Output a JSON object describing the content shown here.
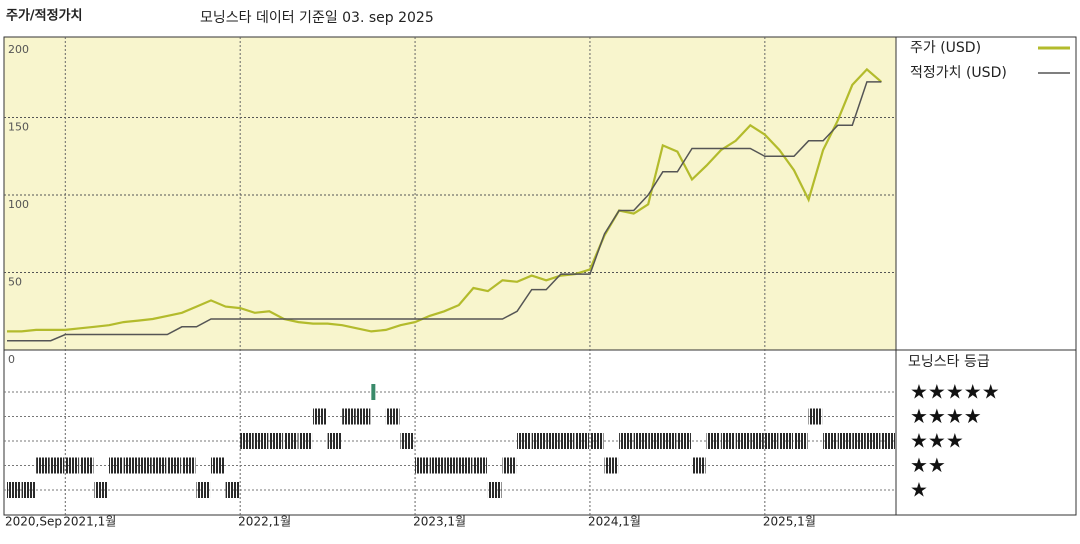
{
  "chart_data": {
    "type": "line",
    "title": "주가/적정가치",
    "subtitle": "모닝스타 데이터 기준일 03. sep 2025",
    "x": [
      "2020-09",
      "2020-10",
      "2020-11",
      "2020-12",
      "2021-01",
      "2021-02",
      "2021-03",
      "2021-04",
      "2021-05",
      "2021-06",
      "2021-07",
      "2021-08",
      "2021-09",
      "2021-10",
      "2021-11",
      "2021-12",
      "2022-01",
      "2022-02",
      "2022-03",
      "2022-04",
      "2022-05",
      "2022-06",
      "2022-07",
      "2022-08",
      "2022-09",
      "2022-10",
      "2022-11",
      "2022-12",
      "2023-01",
      "2023-02",
      "2023-03",
      "2023-04",
      "2023-05",
      "2023-06",
      "2023-07",
      "2023-08",
      "2023-09",
      "2023-10",
      "2023-11",
      "2023-12",
      "2024-01",
      "2024-02",
      "2024-03",
      "2024-04",
      "2024-05",
      "2024-06",
      "2024-07",
      "2024-08",
      "2024-09",
      "2024-10",
      "2024-11",
      "2024-12",
      "2025-01",
      "2025-02",
      "2025-03",
      "2025-04",
      "2025-05",
      "2025-06",
      "2025-07",
      "2025-08",
      "2025-09"
    ],
    "series": [
      {
        "name": "주가 (USD)",
        "color": "#b3bb2c",
        "values": [
          12,
          12,
          13,
          13,
          13,
          14,
          15,
          16,
          18,
          19,
          20,
          22,
          24,
          28,
          32,
          28,
          27,
          24,
          25,
          20,
          18,
          17,
          17,
          16,
          14,
          12,
          13,
          16,
          18,
          22,
          25,
          29,
          40,
          38,
          45,
          44,
          48,
          45,
          48,
          49,
          52,
          74,
          90,
          88,
          94,
          132,
          128,
          110,
          119,
          129,
          135,
          145,
          139,
          129,
          116,
          97,
          129,
          148,
          171,
          181,
          173
        ]
      },
      {
        "name": "적정가치 (USD)",
        "color": "#555555",
        "values": [
          6,
          6,
          6,
          6,
          10,
          10,
          10,
          10,
          10,
          10,
          10,
          10,
          15,
          15,
          20,
          20,
          20,
          20,
          20,
          20,
          20,
          20,
          20,
          20,
          20,
          20,
          20,
          20,
          20,
          20,
          20,
          20,
          20,
          20,
          20,
          25,
          39,
          39,
          49,
          49,
          49,
          75,
          90,
          90,
          100,
          115,
          115,
          130,
          130,
          130,
          130,
          130,
          125,
          125,
          125,
          135,
          135,
          145,
          145,
          173,
          173
        ]
      }
    ],
    "xlim": [
      "2020-09",
      "2025-10"
    ],
    "xticks": [
      {
        "value": "2020-09",
        "label": "2020,Sep"
      },
      {
        "value": "2021-01",
        "label": "2021,1월"
      },
      {
        "value": "2022-01",
        "label": "2022,1월"
      },
      {
        "value": "2023-01",
        "label": "2023,1월"
      },
      {
        "value": "2024-01",
        "label": "2024,1월"
      },
      {
        "value": "2025-01",
        "label": "2025,1월"
      }
    ],
    "ylim": [
      0,
      200
    ],
    "yticks": [
      0,
      50,
      100,
      150,
      200
    ],
    "grid": true,
    "background": "#f8f5cd",
    "rating": {
      "title": "모닝스타 등급",
      "labels": [
        "★",
        "★★",
        "★★★",
        "★★★★",
        "★★★★★"
      ],
      "color": "#2a2a2a",
      "top_color": "#3a8a6a",
      "values": [
        1,
        1,
        2,
        2,
        2,
        2,
        1,
        2,
        2,
        2,
        2,
        2,
        2,
        1,
        2,
        1,
        3,
        3,
        3,
        3,
        3,
        4,
        3,
        4,
        4,
        5,
        4,
        3,
        2,
        2,
        2,
        2,
        2,
        1,
        2,
        3,
        3,
        3,
        3,
        3,
        3,
        2,
        3,
        3,
        3,
        3,
        3,
        2,
        3,
        3,
        3,
        3,
        3,
        3,
        3,
        4,
        3,
        3,
        3,
        3,
        3
      ]
    }
  }
}
